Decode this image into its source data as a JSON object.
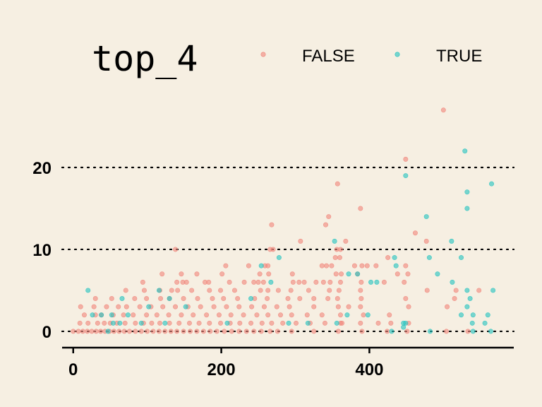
{
  "chart_data": {
    "type": "scatter",
    "title": "",
    "xlabel": "",
    "ylabel": "",
    "xlim": [
      -15,
      595
    ],
    "ylim": [
      -1.3,
      27.5
    ],
    "x_ticks": [
      0,
      200,
      400
    ],
    "y_ticks": [
      0,
      10,
      20
    ],
    "grid": "horizontal dotted lines at y ticks",
    "legend": {
      "title": "top_4",
      "placement": "top",
      "entries": [
        "FALSE",
        "TRUE"
      ]
    },
    "colors": {
      "FALSE": "#f0877d",
      "TRUE": "#27c4c0",
      "background": "#f6efe2"
    },
    "series": [
      {
        "name": "FALSE",
        "points": [
          [
            500,
            27
          ],
          [
            449,
            21
          ],
          [
            357,
            18
          ],
          [
            388,
            15
          ],
          [
            268,
            13
          ],
          [
            345,
            14
          ],
          [
            341,
            13
          ],
          [
            462,
            12
          ],
          [
            477,
            11
          ],
          [
            307,
            11
          ],
          [
            368,
            11
          ],
          [
            138,
            10
          ],
          [
            266,
            10
          ],
          [
            270,
            10
          ],
          [
            356,
            10
          ],
          [
            361,
            10
          ],
          [
            425,
            9
          ],
          [
            354,
            9
          ],
          [
            360,
            9
          ],
          [
            336,
            8
          ],
          [
            342,
            8
          ],
          [
            349,
            8
          ],
          [
            380,
            8
          ],
          [
            390,
            8
          ],
          [
            397,
            8
          ],
          [
            409,
            8
          ],
          [
            449,
            8
          ],
          [
            237,
            8
          ],
          [
            259,
            8
          ],
          [
            263,
            8
          ],
          [
            206,
            8
          ],
          [
            120,
            7
          ],
          [
            146,
            7
          ],
          [
            167,
            7
          ],
          [
            201,
            7
          ],
          [
            252,
            7
          ],
          [
            264,
            7
          ],
          [
            296,
            7
          ],
          [
            355,
            7
          ],
          [
            362,
            7
          ],
          [
            384,
            7
          ],
          [
            438,
            7
          ],
          [
            452,
            7
          ],
          [
            478,
            5
          ],
          [
            517,
            5
          ],
          [
            548,
            5
          ],
          [
            94,
            6
          ],
          [
            140,
            6
          ],
          [
            148,
            6
          ],
          [
            153,
            6
          ],
          [
            178,
            6
          ],
          [
            183,
            6
          ],
          [
            211,
            6
          ],
          [
            231,
            6
          ],
          [
            244,
            6
          ],
          [
            250,
            6
          ],
          [
            257,
            6
          ],
          [
            297,
            6
          ],
          [
            305,
            6
          ],
          [
            312,
            6
          ],
          [
            328,
            6
          ],
          [
            338,
            6
          ],
          [
            347,
            6
          ],
          [
            361,
            6
          ],
          [
            389,
            6
          ],
          [
            420,
            6
          ],
          [
            447,
            6
          ],
          [
            449,
            4
          ],
          [
            515,
            4
          ],
          [
            71,
            5
          ],
          [
            96,
            5
          ],
          [
            117,
            5
          ],
          [
            133,
            5
          ],
          [
            141,
            5
          ],
          [
            160,
            5
          ],
          [
            184,
            5
          ],
          [
            199,
            5
          ],
          [
            218,
            5
          ],
          [
            253,
            5
          ],
          [
            263,
            5
          ],
          [
            277,
            5
          ],
          [
            294,
            5
          ],
          [
            318,
            5
          ],
          [
            346,
            5
          ],
          [
            359,
            5
          ],
          [
            388,
            5
          ],
          [
            30,
            4
          ],
          [
            52,
            4
          ],
          [
            83,
            4
          ],
          [
            99,
            4
          ],
          [
            118,
            4
          ],
          [
            130,
            4
          ],
          [
            149,
            4
          ],
          [
            168,
            4
          ],
          [
            188,
            4
          ],
          [
            203,
            4
          ],
          [
            222,
            4
          ],
          [
            245,
            4
          ],
          [
            262,
            4
          ],
          [
            290,
            4
          ],
          [
            306,
            4
          ],
          [
            325,
            4
          ],
          [
            344,
            4
          ],
          [
            357,
            4
          ],
          [
            389,
            4
          ],
          [
            453,
            3
          ],
          [
            388,
            3
          ],
          [
            505,
            3
          ],
          [
            10,
            3
          ],
          [
            28,
            3
          ],
          [
            45,
            3
          ],
          [
            61,
            3
          ],
          [
            72,
            3
          ],
          [
            90,
            3
          ],
          [
            105,
            3
          ],
          [
            121,
            3
          ],
          [
            138,
            3
          ],
          [
            155,
            3
          ],
          [
            172,
            3
          ],
          [
            190,
            3
          ],
          [
            207,
            3
          ],
          [
            224,
            3
          ],
          [
            241,
            3
          ],
          [
            258,
            3
          ],
          [
            275,
            3
          ],
          [
            292,
            3
          ],
          [
            325,
            3
          ],
          [
            358,
            3
          ],
          [
            372,
            3
          ],
          [
            15,
            2
          ],
          [
            30,
            2
          ],
          [
            38,
            2
          ],
          [
            54,
            2
          ],
          [
            68,
            2
          ],
          [
            81,
            2
          ],
          [
            99,
            2
          ],
          [
            113,
            2
          ],
          [
            129,
            2
          ],
          [
            146,
            2
          ],
          [
            162,
            2
          ],
          [
            180,
            2
          ],
          [
            197,
            2
          ],
          [
            213,
            2
          ],
          [
            230,
            2
          ],
          [
            248,
            2
          ],
          [
            263,
            2
          ],
          [
            280,
            2
          ],
          [
            295,
            2
          ],
          [
            316,
            2
          ],
          [
            336,
            2
          ],
          [
            361,
            2
          ],
          [
            392,
            2
          ],
          [
            427,
            2
          ],
          [
            363,
            1
          ],
          [
            9,
            1
          ],
          [
            20,
            1
          ],
          [
            33,
            1
          ],
          [
            42,
            1
          ],
          [
            50,
            1
          ],
          [
            59,
            1
          ],
          [
            70,
            1
          ],
          [
            84,
            1
          ],
          [
            95,
            1
          ],
          [
            106,
            1
          ],
          [
            117,
            1
          ],
          [
            130,
            1
          ],
          [
            143,
            1
          ],
          [
            157,
            1
          ],
          [
            170,
            1
          ],
          [
            184,
            1
          ],
          [
            199,
            1
          ],
          [
            212,
            1
          ],
          [
            225,
            1
          ],
          [
            240,
            1
          ],
          [
            255,
            1
          ],
          [
            268,
            1
          ],
          [
            283,
            1
          ],
          [
            301,
            1
          ],
          [
            320,
            1
          ],
          [
            340,
            1
          ],
          [
            361,
            1
          ],
          [
            388,
            1
          ],
          [
            412,
            1
          ],
          [
            429,
            1
          ],
          [
            453,
            1
          ],
          [
            0,
            0
          ],
          [
            7,
            0
          ],
          [
            13,
            0
          ],
          [
            19,
            0
          ],
          [
            25,
            0
          ],
          [
            31,
            0
          ],
          [
            37,
            0
          ],
          [
            43,
            0
          ],
          [
            49,
            0
          ],
          [
            55,
            0
          ],
          [
            62,
            0
          ],
          [
            69,
            0
          ],
          [
            76,
            0
          ],
          [
            84,
            0
          ],
          [
            92,
            0
          ],
          [
            100,
            0
          ],
          [
            108,
            0
          ],
          [
            116,
            0
          ],
          [
            124,
            0
          ],
          [
            132,
            0
          ],
          [
            140,
            0
          ],
          [
            149,
            0
          ],
          [
            158,
            0
          ],
          [
            167,
            0
          ],
          [
            176,
            0
          ],
          [
            185,
            0
          ],
          [
            194,
            0
          ],
          [
            204,
            0
          ],
          [
            214,
            0
          ],
          [
            224,
            0
          ],
          [
            234,
            0
          ],
          [
            244,
            0
          ],
          [
            254,
            0
          ],
          [
            266,
            0
          ],
          [
            276,
            0
          ],
          [
            295,
            0
          ],
          [
            325,
            0
          ],
          [
            358,
            0
          ],
          [
            390,
            0
          ],
          [
            424,
            0
          ],
          [
            451,
            0
          ],
          [
            504,
            0
          ],
          [
            533,
            0
          ]
        ]
      },
      {
        "name": "TRUE",
        "points": [
          [
            529,
            22
          ],
          [
            449,
            19
          ],
          [
            532,
            17
          ],
          [
            565,
            18
          ],
          [
            532,
            15
          ],
          [
            477,
            14
          ],
          [
            353,
            11
          ],
          [
            511,
            11
          ],
          [
            278,
            9
          ],
          [
            254,
            8
          ],
          [
            372,
            7
          ],
          [
            524,
            9
          ],
          [
            481,
            9
          ],
          [
            434,
            9
          ],
          [
            492,
            7
          ],
          [
            436,
            8
          ],
          [
            370,
            2
          ],
          [
            384,
            7
          ],
          [
            402,
            6
          ],
          [
            410,
            6
          ],
          [
            446,
            0.5
          ],
          [
            446,
            1
          ],
          [
            512,
            6
          ],
          [
            532,
            5
          ],
          [
            536,
            4
          ],
          [
            524,
            2
          ],
          [
            532,
            3
          ],
          [
            540,
            2
          ],
          [
            556,
            1
          ],
          [
            20,
            5
          ],
          [
            66,
            4
          ],
          [
            116,
            5
          ],
          [
            130,
            4
          ],
          [
            152,
            3
          ],
          [
            102,
            3
          ],
          [
            26,
            2
          ],
          [
            38,
            2
          ],
          [
            52,
            2
          ],
          [
            63,
            1
          ],
          [
            54,
            1
          ],
          [
            47,
            0
          ],
          [
            74,
            2
          ],
          [
            92,
            1
          ],
          [
            124,
            1
          ],
          [
            208,
            1
          ],
          [
            267,
            6
          ],
          [
            240,
            4
          ],
          [
            291,
            1
          ],
          [
            317,
            1
          ],
          [
            356,
            1
          ],
          [
            398,
            2
          ],
          [
            430,
            0
          ],
          [
            449,
            1
          ],
          [
            482,
            0
          ],
          [
            539,
            1
          ],
          [
            564,
            0
          ],
          [
            567,
            5
          ],
          [
            560,
            2
          ],
          [
            540,
            0
          ]
        ]
      }
    ]
  }
}
